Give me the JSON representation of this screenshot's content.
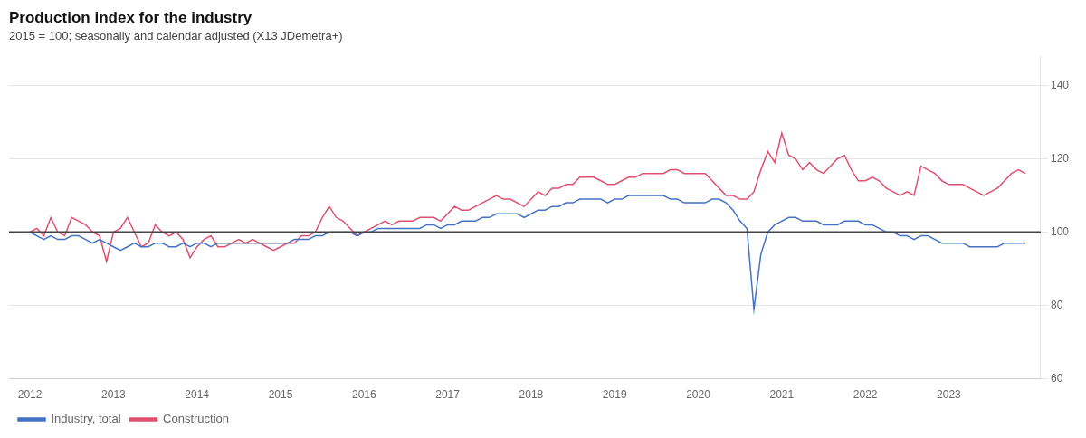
{
  "chart_data": {
    "type": "line",
    "title": "Production index for the industry",
    "subtitle": "2015 = 100; seasonally and calendar adjusted (X13 JDemetra+)",
    "x": [
      2012,
      2012.083333,
      2012.166667,
      2012.25,
      2012.333333,
      2012.416667,
      2012.5,
      2012.583333,
      2012.666667,
      2012.75,
      2012.833333,
      2012.916667,
      2013,
      2013.083333,
      2013.166667,
      2013.25,
      2013.333333,
      2013.416667,
      2013.5,
      2013.583333,
      2013.666667,
      2013.75,
      2013.833333,
      2013.916667,
      2014,
      2014.083333,
      2014.166667,
      2014.25,
      2014.333333,
      2014.416667,
      2014.5,
      2014.583333,
      2014.666667,
      2014.75,
      2014.833333,
      2014.916667,
      2015,
      2015.083333,
      2015.166667,
      2015.25,
      2015.333333,
      2015.416667,
      2015.5,
      2015.583333,
      2015.666667,
      2015.75,
      2015.833333,
      2015.916667,
      2016,
      2016.083333,
      2016.166667,
      2016.25,
      2016.333333,
      2016.416667,
      2016.5,
      2016.583333,
      2016.666667,
      2016.75,
      2016.833333,
      2016.916667,
      2017,
      2017.083333,
      2017.166667,
      2017.25,
      2017.333333,
      2017.416667,
      2017.5,
      2017.583333,
      2017.666667,
      2017.75,
      2017.833333,
      2017.916667,
      2018,
      2018.083333,
      2018.166667,
      2018.25,
      2018.333333,
      2018.416667,
      2018.5,
      2018.583333,
      2018.666667,
      2018.75,
      2018.833333,
      2018.916667,
      2019,
      2019.083333,
      2019.166667,
      2019.25,
      2019.333333,
      2019.416667,
      2019.5,
      2019.583333,
      2019.666667,
      2019.75,
      2019.833333,
      2019.916667,
      2020,
      2020.083333,
      2020.166667,
      2020.25,
      2020.333333,
      2020.416667,
      2020.5,
      2020.583333,
      2020.666667,
      2020.75,
      2020.833333,
      2020.916667,
      2021,
      2021.083333,
      2021.166667,
      2021.25,
      2021.333333,
      2021.416667,
      2021.5,
      2021.583333,
      2021.666667,
      2021.75,
      2021.833333,
      2021.916667,
      2022,
      2022.083333,
      2022.166667,
      2022.25,
      2022.333333,
      2022.416667,
      2022.5,
      2022.583333,
      2022.666667,
      2022.75,
      2022.833333,
      2022.916667,
      2023,
      2023.083333,
      2023.166667,
      2023.25,
      2023.333333,
      2023.416667,
      2023.5,
      2023.583333,
      2023.666667,
      2023.75,
      2023.833333,
      2023.916667
    ],
    "series": [
      {
        "name": "Industry, total",
        "color": "#4472c4",
        "values": [
          100,
          99,
          98,
          99,
          98,
          98,
          99,
          99,
          98,
          97,
          98,
          97,
          96,
          95,
          96,
          97,
          96,
          96,
          97,
          97,
          96,
          96,
          97,
          96,
          97,
          97,
          96,
          97,
          97,
          97,
          97,
          97,
          97,
          97,
          97,
          97,
          97,
          97,
          98,
          98,
          98,
          99,
          99,
          100,
          100,
          100,
          100,
          99,
          100,
          100,
          101,
          101,
          101,
          101,
          101,
          101,
          101,
          102,
          102,
          101,
          102,
          102,
          103,
          103,
          103,
          104,
          104,
          105,
          105,
          105,
          105,
          104,
          105,
          106,
          106,
          107,
          107,
          108,
          108,
          109,
          109,
          109,
          109,
          108,
          109,
          109,
          110,
          110,
          110,
          110,
          110,
          110,
          109,
          109,
          108,
          108,
          108,
          108,
          109,
          109,
          108,
          106,
          103,
          101,
          79,
          94,
          100,
          102,
          103,
          104,
          104,
          103,
          103,
          103,
          102,
          102,
          102,
          103,
          103,
          103,
          102,
          102,
          101,
          100,
          100,
          99,
          99,
          98,
          99,
          99,
          98,
          97,
          97,
          97,
          97,
          96,
          96,
          96,
          96,
          96,
          97,
          97,
          97,
          97
        ]
      },
      {
        "name": "Construction",
        "color": "#e05070",
        "values": [
          100,
          101,
          99,
          104,
          100,
          99,
          104,
          103,
          102,
          100,
          99,
          92,
          100,
          101,
          104,
          100,
          96,
          97,
          102,
          100,
          99,
          100,
          98,
          93,
          96,
          98,
          99,
          96,
          96,
          97,
          98,
          97,
          98,
          97,
          96,
          95,
          96,
          97,
          97,
          99,
          99,
          100,
          104,
          107,
          104,
          103,
          101,
          99,
          100,
          101,
          102,
          103,
          102,
          103,
          103,
          103,
          104,
          104,
          104,
          103,
          105,
          107,
          106,
          106,
          107,
          108,
          109,
          110,
          109,
          109,
          108,
          107,
          109,
          111,
          110,
          112,
          112,
          113,
          113,
          115,
          115,
          115,
          114,
          113,
          113,
          114,
          115,
          115,
          116,
          116,
          116,
          116,
          117,
          117,
          116,
          116,
          116,
          116,
          114,
          112,
          110,
          110,
          109,
          109,
          111,
          117,
          122,
          119,
          127,
          121,
          120,
          117,
          119,
          117,
          116,
          118,
          120,
          121,
          117,
          114,
          114,
          115,
          114,
          112,
          111,
          110,
          111,
          110,
          118,
          117,
          116,
          114,
          113,
          113,
          113,
          112,
          111,
          110,
          111,
          112,
          114,
          116,
          117,
          116
        ]
      }
    ],
    "reference_line": {
      "y": 100,
      "color": "#444444"
    },
    "xlim": [
      2011.75,
      2024.1
    ],
    "xticks": [
      2012,
      2013,
      2014,
      2015,
      2016,
      2017,
      2018,
      2019,
      2020,
      2021,
      2022,
      2023
    ],
    "ylim": [
      60,
      148
    ],
    "yticks": [
      60,
      80,
      100,
      120,
      140
    ],
    "grid": "y",
    "legend": "bottom left"
  }
}
